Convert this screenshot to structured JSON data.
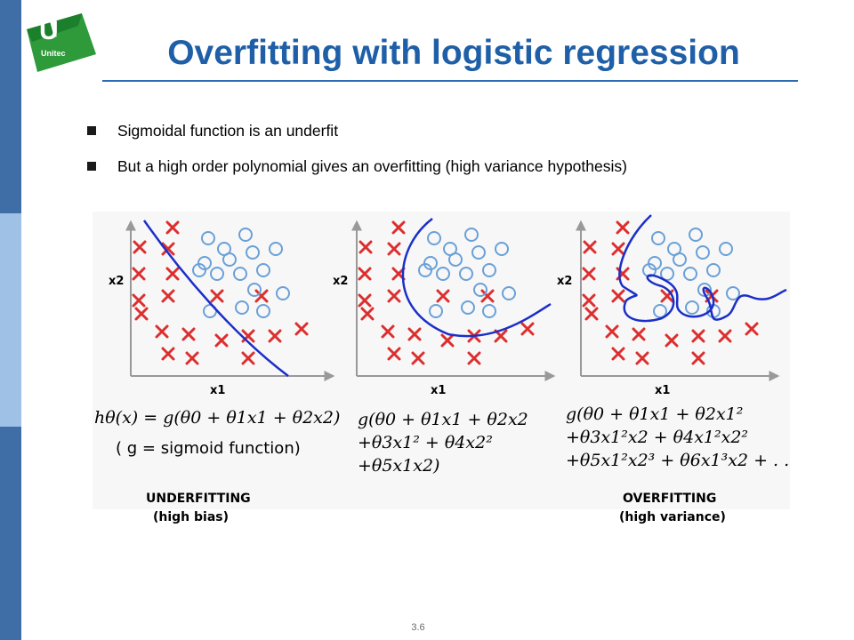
{
  "slide": {
    "title": "Overfitting with logistic regression",
    "bullets": [
      "Sigmoidal function is an underfit",
      "But a high order polynomial gives an overfitting (high variance hypothesis)"
    ],
    "page_number": "3.6",
    "logo_text": "Unitec"
  },
  "colors": {
    "accent_blue": "#1f5fa8",
    "sidebar": "#3e6ea5",
    "cross_red": "#dd2e2e",
    "circle_blue": "#6aa0d8",
    "boundary_blue": "#1b2ec8",
    "logo_green": "#2e9a3a"
  },
  "figure": {
    "panels": [
      {
        "xlabel": "x1",
        "ylabel": "x2",
        "formula_lines": [
          "hθ(x) = g(θ0 + θ1x1 + θ2x2)",
          "( g = sigmoid function)"
        ],
        "caption_lines": [
          "UNDERFITTING",
          "(high bias)"
        ]
      },
      {
        "xlabel": "x1",
        "ylabel": "x2",
        "formula_lines": [
          "g(θ0 + θ1x1 + θ2x2",
          "+θ3x1² + θ4x2²",
          "+θ5x1x2)"
        ],
        "caption_lines": []
      },
      {
        "xlabel": "x1",
        "ylabel": "x2",
        "formula_lines": [
          "g(θ0 + θ1x1 + θ2x1²",
          "+θ3x1²x2 + θ4x1²x2²",
          "+θ5x1²x2³ + θ6x1³x2 + . . ."
        ],
        "caption_lines": [
          "OVERFITTING",
          "(high variance)"
        ]
      }
    ]
  }
}
